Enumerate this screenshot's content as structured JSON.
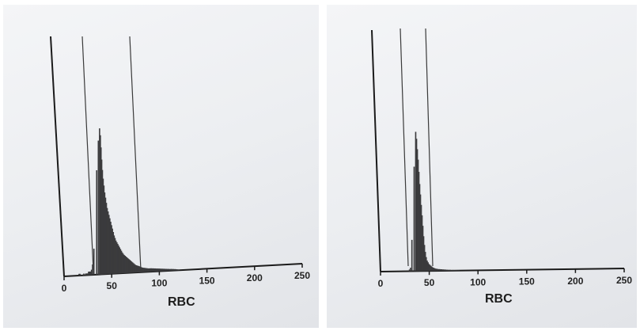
{
  "chart_data": [
    {
      "type": "histogram",
      "xlabel": "RBC",
      "ylabel": "",
      "xlim": [
        0,
        250
      ],
      "ylim": [
        0,
        100
      ],
      "xticks": [
        0,
        50,
        100,
        150,
        200,
        250
      ],
      "tick_labels": [
        "0",
        "50",
        "100",
        "150",
        "200",
        "250"
      ],
      "vertical_lines": [
        20,
        70
      ],
      "bin_width": 1,
      "x": [
        14,
        15,
        16,
        17,
        18,
        19,
        20,
        21,
        22,
        23,
        24,
        25,
        26,
        27,
        28,
        29,
        30,
        31,
        32,
        33,
        34,
        35,
        36,
        37,
        38,
        39,
        40,
        41,
        42,
        43,
        44,
        45,
        46,
        47,
        48,
        49,
        50,
        51,
        52,
        53,
        54,
        55,
        56,
        57,
        58,
        59,
        60,
        61,
        62,
        63,
        64,
        65,
        66,
        67,
        68,
        69,
        70,
        71,
        72,
        73,
        74,
        75,
        76,
        77,
        78,
        79,
        80,
        81,
        82,
        83,
        84,
        85,
        86,
        87,
        88,
        89,
        90,
        91,
        92,
        93,
        94,
        95,
        96,
        97,
        98,
        99,
        100,
        101,
        102,
        103,
        104,
        105,
        106,
        107,
        108,
        109,
        110,
        111,
        112,
        113,
        114,
        115,
        116,
        117,
        118,
        119,
        120
      ],
      "values": [
        0,
        1,
        1,
        0,
        0,
        0,
        1,
        0,
        1,
        1,
        1,
        2,
        2,
        2,
        3,
        6,
        15,
        60,
        77,
        84,
        80,
        73,
        66,
        60,
        55,
        51,
        47,
        44,
        41,
        38,
        36,
        34,
        32,
        30,
        28,
        26,
        24,
        22,
        20.5,
        19,
        18,
        17,
        16,
        15,
        14,
        13,
        12,
        11.2,
        10.5,
        10,
        9.5,
        9,
        8.5,
        8,
        7.5,
        7,
        6.5,
        6,
        5.5,
        5,
        4.5,
        4.2,
        4,
        3.8,
        3.6,
        3.3,
        3,
        2.8,
        2.6,
        2.5,
        2.4,
        2.3,
        2.2,
        2.1,
        2,
        2,
        2,
        2,
        1.9,
        1.9,
        1.8,
        1.8,
        1.7,
        1.7,
        1.6,
        1.6,
        1.5,
        1.5,
        1.4,
        1.4,
        1.3,
        1.3,
        1.2,
        1.2,
        1.1,
        1.1,
        1,
        1,
        1,
        0.9,
        0.9,
        0.8,
        0.8,
        0.7,
        0.6,
        0.5,
        0.4
      ]
    },
    {
      "type": "histogram",
      "xlabel": "RBC",
      "ylabel": "",
      "xlim": [
        0,
        250
      ],
      "ylim": [
        0,
        100
      ],
      "xticks": [
        0,
        50,
        100,
        150,
        200,
        250
      ],
      "tick_labels": [
        "0",
        "50",
        "100",
        "150",
        "200",
        "250"
      ],
      "vertical_lines": [
        25,
        55
      ],
      "bin_width": 1,
      "x": [
        27,
        28,
        29,
        30,
        31,
        32,
        33,
        34,
        35,
        36,
        37,
        38,
        39,
        40,
        41,
        42,
        43,
        44,
        45,
        46,
        47,
        48,
        49,
        50,
        51,
        52,
        53,
        54,
        55,
        56,
        57,
        58,
        59,
        60,
        61,
        62,
        63,
        64,
        65,
        66,
        67,
        68,
        69,
        70,
        71,
        72,
        73,
        74,
        75,
        76,
        77,
        78,
        79,
        80
      ],
      "values": [
        0,
        0,
        1,
        2,
        18,
        60,
        80,
        76,
        70,
        64,
        57,
        50,
        44,
        38,
        32,
        26,
        20,
        15,
        11,
        8,
        6,
        5,
        4,
        3.5,
        3,
        2.5,
        2,
        1.8,
        1.5,
        1.3,
        1.2,
        1.1,
        1,
        1,
        0.9,
        0.9,
        0.8,
        0.8,
        0.7,
        0.7,
        0.6,
        0.6,
        0.5,
        0.5,
        0.5,
        0.4,
        0.4,
        0.4,
        0.3,
        0.3,
        0.3,
        0.2,
        0.2,
        0.2
      ]
    }
  ]
}
